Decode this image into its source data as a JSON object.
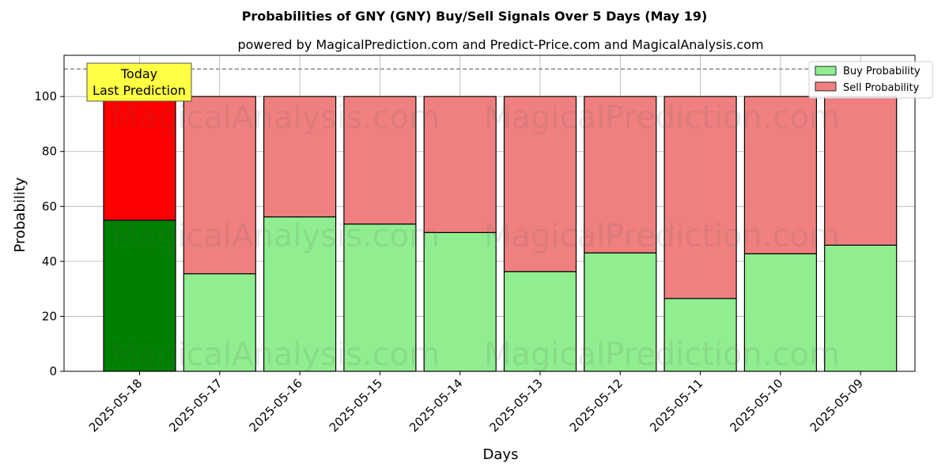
{
  "chart_data": {
    "type": "bar",
    "stacked": true,
    "title": "Probabilities of GNY (GNY) Buy/Sell Signals Over 5 Days (May 19)",
    "subtitle": "powered by MagicalPrediction.com and Predict-Price.com and MagicalAnalysis.com",
    "xlabel": "Days",
    "ylabel": "Probability",
    "ylim": [
      0,
      115
    ],
    "yticks": [
      0,
      20,
      40,
      60,
      80,
      100
    ],
    "grid": true,
    "legend_position": "top-right",
    "threshold_line": 110,
    "categories": [
      "2025-05-18",
      "2025-05-17",
      "2025-05-16",
      "2025-05-15",
      "2025-05-14",
      "2025-05-13",
      "2025-05-12",
      "2025-05-11",
      "2025-05-10",
      "2025-05-09"
    ],
    "series": [
      {
        "name": "Buy Probability",
        "values": [
          55,
          35.5,
          56.2,
          53.6,
          50.5,
          36.3,
          43.1,
          26.5,
          42.8,
          45.9
        ],
        "color": "#90ee90",
        "highlight_color": "#008000"
      },
      {
        "name": "Sell Probability",
        "values": [
          45,
          64.5,
          43.8,
          46.4,
          49.5,
          63.7,
          56.9,
          73.5,
          57.2,
          54.1
        ],
        "color": "#f08080",
        "highlight_color": "#ff0000"
      }
    ],
    "annotation": {
      "lines": [
        "Today",
        "Last Prediction"
      ],
      "color": "#ffff44"
    },
    "watermarks": [
      "MagicalAnalysis.com",
      "MagicalPrediction.com"
    ]
  }
}
